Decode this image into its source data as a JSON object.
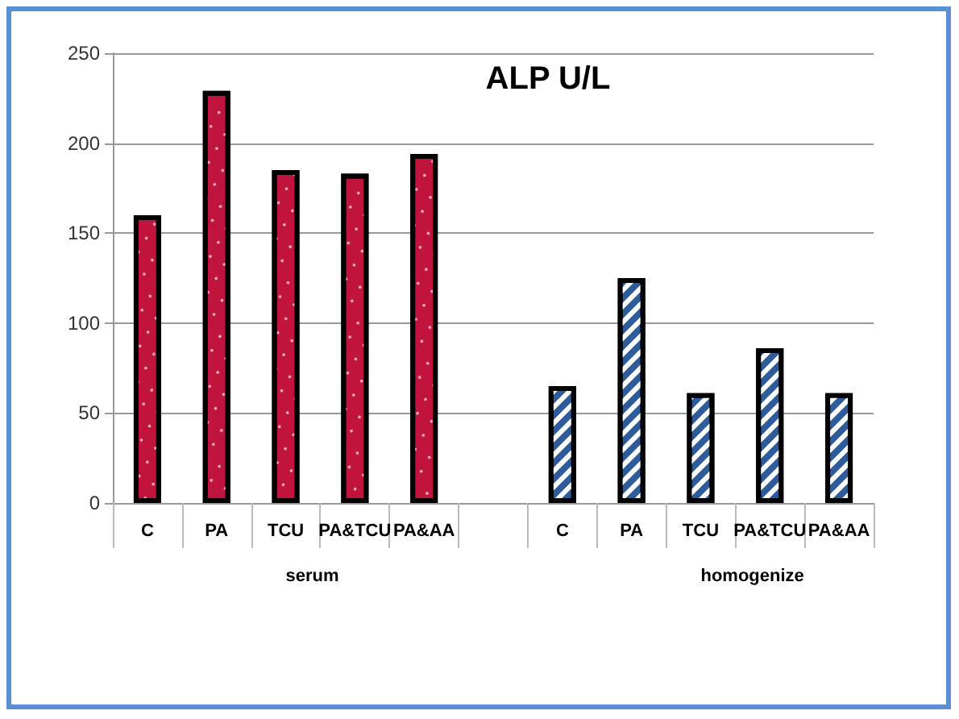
{
  "chart_data": {
    "type": "bar",
    "title": "ALP U/L",
    "categories": [
      "C",
      "PA",
      "TCU",
      "PA&TCU",
      "PA&AA",
      null,
      "C",
      "PA",
      "TCU",
      "PA&TCU",
      "PA&AA"
    ],
    "series": [
      {
        "color": "#c0143c",
        "values": [
          160,
          229,
          185,
          183,
          194,
          null,
          null,
          null,
          null,
          null,
          null
        ]
      },
      {
        "color": "#2e5c9a",
        "values": [
          null,
          null,
          null,
          null,
          null,
          null,
          65,
          125,
          61,
          86,
          61
        ]
      }
    ],
    "ylim": [
      0,
      250
    ],
    "yticks": [
      0,
      50,
      100,
      150,
      200,
      250
    ],
    "grid": "y",
    "annotations": [
      "serum",
      "homogenize"
    ]
  }
}
